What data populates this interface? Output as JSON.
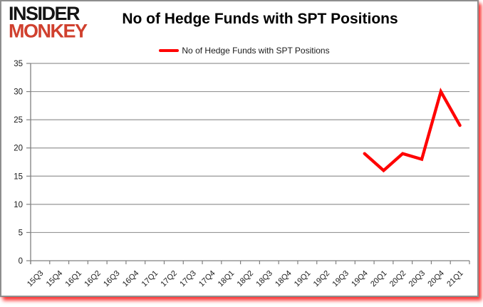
{
  "logo": {
    "line1": "INSIDER",
    "line2": "MONKEY",
    "line2_color": "#d0402e"
  },
  "title": "No of Hedge Funds with SPT Positions",
  "legend": {
    "label": "No of Hedge Funds with SPT Positions",
    "swatch_color": "#ff0000"
  },
  "chart_data": {
    "type": "line",
    "title": "No of Hedge Funds with SPT Positions",
    "categories": [
      "15Q3",
      "15Q4",
      "16Q1",
      "16Q2",
      "16Q3",
      "16Q4",
      "17Q1",
      "17Q2",
      "17Q3",
      "17Q4",
      "18Q1",
      "18Q2",
      "18Q3",
      "18Q4",
      "19Q1",
      "19Q2",
      "19Q3",
      "19Q4",
      "20Q1",
      "20Q2",
      "20Q3",
      "20Q4",
      "21Q1"
    ],
    "series": [
      {
        "name": "No of Hedge Funds with SPT Positions",
        "color": "#ff0000",
        "values": [
          null,
          null,
          null,
          null,
          null,
          null,
          null,
          null,
          null,
          null,
          null,
          null,
          null,
          null,
          null,
          null,
          null,
          19,
          16,
          19,
          18,
          30,
          24
        ]
      }
    ],
    "ylim": [
      0,
      35
    ],
    "yticks": [
      0,
      5,
      10,
      15,
      20,
      25,
      30,
      35
    ],
    "xlabel": "",
    "ylabel": "",
    "grid": "horizontal",
    "gridline_color": "#969696",
    "axis_color": "#808080",
    "legend_position": "top-center"
  }
}
